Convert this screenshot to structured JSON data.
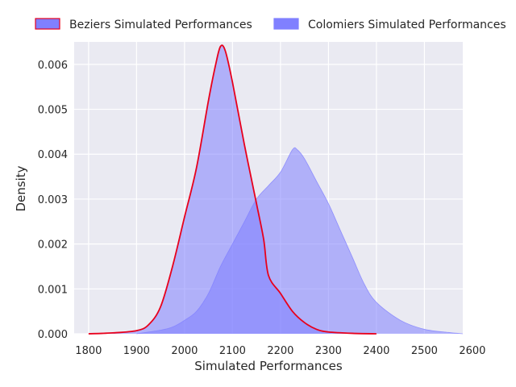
{
  "chart_data": {
    "type": "area",
    "xlabel": "Simulated Performances",
    "ylabel": "Density",
    "xlim": [
      1770,
      2580
    ],
    "ylim": [
      0,
      0.0065
    ],
    "x_ticks": [
      1800,
      1900,
      2000,
      2100,
      2200,
      2300,
      2400,
      2500,
      2600
    ],
    "y_ticks": [
      0.0,
      0.001,
      0.002,
      0.003,
      0.004,
      0.005,
      0.006
    ],
    "y_tick_labels": [
      "0.000",
      "0.001",
      "0.002",
      "0.003",
      "0.004",
      "0.005",
      "0.006"
    ],
    "grid": true,
    "legend_position": "top",
    "series": [
      {
        "name": "Beziers Simulated Performances",
        "fill_color": "#8080ff",
        "line_color": "#e8001c",
        "x": [
          1800,
          1850,
          1900,
          1925,
          1950,
          1975,
          2000,
          2025,
          2050,
          2065,
          2075,
          2085,
          2100,
          2125,
          2150,
          2165,
          2175,
          2200,
          2225,
          2250,
          2275,
          2300,
          2350,
          2400
        ],
        "y": [
          0.0,
          2e-05,
          7e-05,
          0.0002,
          0.0006,
          0.0015,
          0.0026,
          0.0037,
          0.0052,
          0.006,
          0.0064,
          0.0063,
          0.0056,
          0.0042,
          0.0029,
          0.0021,
          0.0013,
          0.0009,
          0.0005,
          0.00025,
          0.0001,
          4e-05,
          1e-05,
          0.0
        ]
      },
      {
        "name": "Colomiers Simulated Performances",
        "fill_color": "#8080ff",
        "line_color": "#8080ff",
        "x": [
          1900,
          1950,
          1975,
          2000,
          2025,
          2050,
          2075,
          2100,
          2125,
          2150,
          2175,
          2200,
          2225,
          2235,
          2250,
          2275,
          2300,
          2325,
          2350,
          2375,
          2400,
          2450,
          2500,
          2550,
          2580
        ],
        "y": [
          0.0,
          8e-05,
          0.00015,
          0.0003,
          0.0005,
          0.0009,
          0.0015,
          0.002,
          0.0025,
          0.003,
          0.0033,
          0.0036,
          0.0041,
          0.0041,
          0.0039,
          0.0034,
          0.0029,
          0.0023,
          0.0017,
          0.0011,
          0.0007,
          0.0003,
          0.0001,
          3e-05,
          0.0
        ]
      }
    ]
  }
}
